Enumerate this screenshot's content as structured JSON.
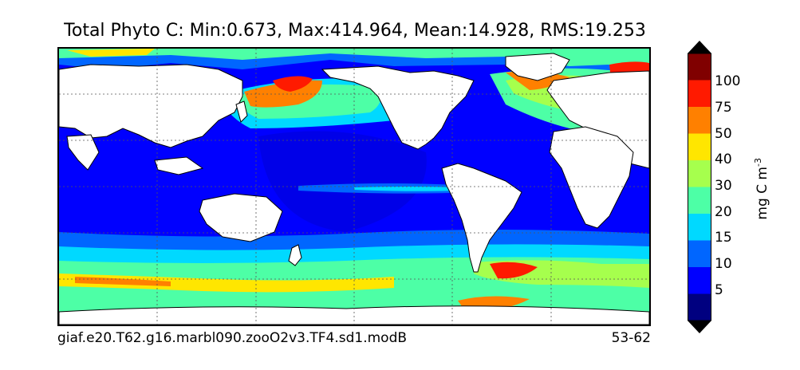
{
  "title": "Total Phyto C: Min:0.673, Max:414.964, Mean:14.928, RMS:19.253",
  "footer": {
    "case_name": "giaf.e20.T62.g16.marbl090.zooO2v3.TF4.sd1.modB",
    "years": "53-62"
  },
  "colorbar": {
    "unit_label": "mg C m",
    "unit_exponent": "-3",
    "tick_labels": [
      "100",
      "75",
      "50",
      "40",
      "30",
      "20",
      "15",
      "10",
      "5"
    ],
    "colors_top_to_bottom": [
      "#800000",
      "#ff1a00",
      "#ff8000",
      "#ffe600",
      "#a6ff4d",
      "#4dffa6",
      "#00d9ff",
      "#0066ff",
      "#0000ff",
      "#000080"
    ],
    "extend": "both"
  },
  "map": {
    "projection": "cylindrical",
    "grid": "dotted",
    "palette": {
      "land": "#ffffff",
      "coast": "#000000"
    }
  }
}
